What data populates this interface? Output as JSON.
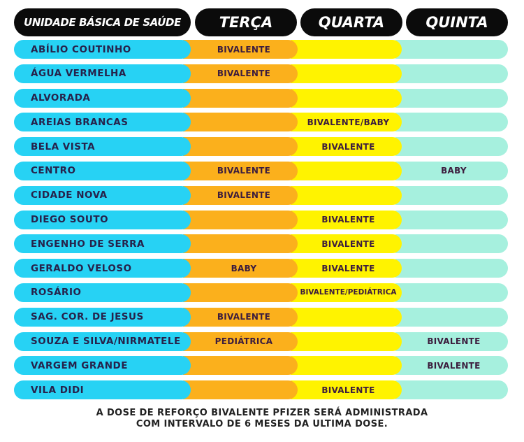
{
  "header": {
    "unit": "UNIDADE BÁSICA DE SAÚDE",
    "tuesday": "TERÇA",
    "wednesday": "QUARTA",
    "thursday": "QUINTA"
  },
  "rows": [
    {
      "unit": "ABÍLIO COUTINHO",
      "tue": "BIVALENTE",
      "wed": "",
      "thu": ""
    },
    {
      "unit": "ÁGUA VERMELHA",
      "tue": "BIVALENTE",
      "wed": "",
      "thu": ""
    },
    {
      "unit": "ALVORADA",
      "tue": "",
      "wed": "",
      "thu": ""
    },
    {
      "unit": "AREIAS BRANCAS",
      "tue": "",
      "wed": "BIVALENTE/BABY",
      "thu": ""
    },
    {
      "unit": "BELA VISTA",
      "tue": "",
      "wed": "BIVALENTE",
      "thu": ""
    },
    {
      "unit": "CENTRO",
      "tue": "BIVALENTE",
      "wed": "",
      "thu": "BABY"
    },
    {
      "unit": "CIDADE NOVA",
      "tue": "BIVALENTE",
      "wed": "",
      "thu": ""
    },
    {
      "unit": "DIEGO SOUTO",
      "tue": "",
      "wed": "BIVALENTE",
      "thu": ""
    },
    {
      "unit": "ENGENHO DE SERRA",
      "tue": "",
      "wed": "BIVALENTE",
      "thu": ""
    },
    {
      "unit": "GERALDO VELOSO",
      "tue": "BABY",
      "wed": "BIVALENTE",
      "thu": ""
    },
    {
      "unit": "ROSÁRIO",
      "tue": "",
      "wed": "BIVALENTE/PEDIÁTRICA",
      "thu": ""
    },
    {
      "unit": "SAG. COR. DE JESUS",
      "tue": "BIVALENTE",
      "wed": "",
      "thu": ""
    },
    {
      "unit": "SOUZA E SILVA/NIRMATELE",
      "tue": "PEDIÁTRICA",
      "wed": "",
      "thu": "BIVALENTE"
    },
    {
      "unit": "VARGEM GRANDE",
      "tue": "",
      "wed": "",
      "thu": "BIVALENTE"
    },
    {
      "unit": "VILA DIDI",
      "tue": "",
      "wed": "BIVALENTE",
      "thu": ""
    }
  ],
  "footer": {
    "line1": "A DOSE DE REFORÇO BIVALENTE PFIZER SERÁ ADMINISTRADA",
    "line2": "COM INTERVALO DE 6 MESES DA ULTIMA DOSE."
  },
  "colors": {
    "header_bg": "#0b0b0b",
    "unit_col": "#27d2f4",
    "tuesday_col": "#fbb01c",
    "wednesday_col": "#fff300",
    "thursday_col": "#a6f0de"
  }
}
